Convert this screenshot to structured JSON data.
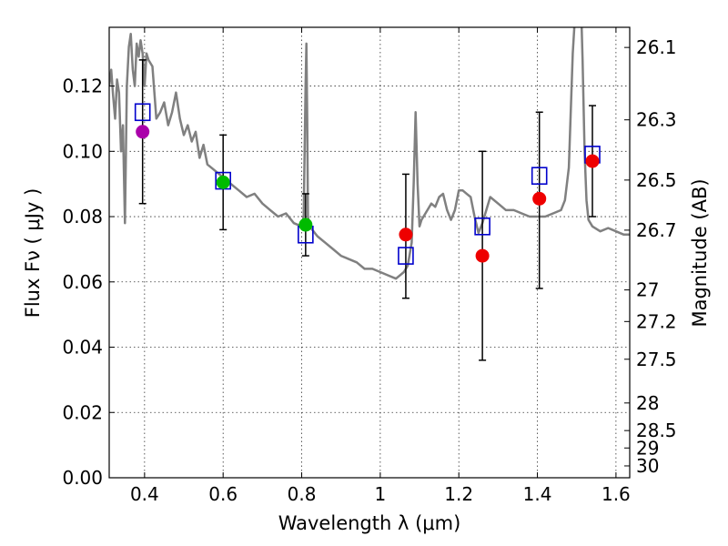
{
  "chart_data": {
    "type": "scatter",
    "xlabel": "Wavelength  λ (μm)",
    "ylabel": "Flux  Fν  ( μJy )",
    "ylabel_right": "Magnitude (AB)",
    "xlim": [
      0.31,
      1.635
    ],
    "ylim": [
      0.0,
      0.138
    ],
    "grid": true,
    "x_ticks": [
      {
        "value": 0.4,
        "label": "0.4"
      },
      {
        "value": 0.6,
        "label": "0.6"
      },
      {
        "value": 0.8,
        "label": "0.8"
      },
      {
        "value": 1.0,
        "label": "1"
      },
      {
        "value": 1.2,
        "label": "1.2"
      },
      {
        "value": 1.4,
        "label": "1.4"
      },
      {
        "value": 1.6,
        "label": "1.6"
      }
    ],
    "y_ticks": [
      {
        "value": 0.0,
        "label": "0.00"
      },
      {
        "value": 0.02,
        "label": "0.02"
      },
      {
        "value": 0.04,
        "label": "0.04"
      },
      {
        "value": 0.06,
        "label": "0.06"
      },
      {
        "value": 0.08,
        "label": "0.08"
      },
      {
        "value": 0.1,
        "label": "0.10"
      },
      {
        "value": 0.12,
        "label": "0.12"
      }
    ],
    "right_ticks": [
      {
        "mag": 26.1,
        "label": "26.1"
      },
      {
        "mag": 26.3,
        "label": "26.3"
      },
      {
        "mag": 26.5,
        "label": "26.5"
      },
      {
        "mag": 26.7,
        "label": "26.7"
      },
      {
        "mag": 27.0,
        "label": "27"
      },
      {
        "mag": 27.2,
        "label": "27.2"
      },
      {
        "mag": 27.5,
        "label": "27.5"
      },
      {
        "mag": 28.0,
        "label": "28"
      },
      {
        "mag": 28.5,
        "label": "28.5"
      },
      {
        "mag": 29.0,
        "label": "29"
      },
      {
        "mag": 30.0,
        "label": "30"
      }
    ],
    "colors": {
      "sed": "#808080",
      "model": "#0000cc",
      "errorbar": "#000000",
      "violet": "#aa00aa",
      "green": "#00bb00",
      "red": "#ee0000"
    },
    "model_sed": {
      "x": [
        0.31,
        0.315,
        0.32,
        0.325,
        0.33,
        0.335,
        0.34,
        0.345,
        0.35,
        0.355,
        0.36,
        0.365,
        0.37,
        0.375,
        0.38,
        0.385,
        0.39,
        0.395,
        0.4,
        0.405,
        0.41,
        0.42,
        0.43,
        0.44,
        0.45,
        0.46,
        0.47,
        0.48,
        0.49,
        0.5,
        0.51,
        0.52,
        0.53,
        0.54,
        0.55,
        0.56,
        0.58,
        0.6,
        0.62,
        0.64,
        0.66,
        0.68,
        0.7,
        0.72,
        0.74,
        0.76,
        0.78,
        0.8,
        0.805,
        0.81,
        0.812,
        0.814,
        0.816,
        0.82,
        0.84,
        0.86,
        0.88,
        0.9,
        0.92,
        0.94,
        0.96,
        0.98,
        1.0,
        1.02,
        1.04,
        1.06,
        1.07,
        1.08,
        1.085,
        1.09,
        1.095,
        1.1,
        1.105,
        1.11,
        1.12,
        1.13,
        1.14,
        1.15,
        1.16,
        1.17,
        1.18,
        1.19,
        1.2,
        1.21,
        1.22,
        1.23,
        1.24,
        1.25,
        1.26,
        1.27,
        1.28,
        1.3,
        1.32,
        1.34,
        1.36,
        1.38,
        1.4,
        1.42,
        1.44,
        1.46,
        1.47,
        1.48,
        1.49,
        1.5,
        1.505,
        1.51,
        1.515,
        1.52,
        1.525,
        1.53,
        1.54,
        1.56,
        1.58,
        1.6,
        1.62,
        1.635
      ],
      "y": [
        0.12,
        0.125,
        0.117,
        0.11,
        0.122,
        0.118,
        0.1,
        0.108,
        0.078,
        0.12,
        0.132,
        0.136,
        0.125,
        0.12,
        0.133,
        0.129,
        0.134,
        0.13,
        0.12,
        0.13,
        0.128,
        0.126,
        0.11,
        0.112,
        0.115,
        0.108,
        0.112,
        0.118,
        0.11,
        0.105,
        0.108,
        0.103,
        0.106,
        0.098,
        0.102,
        0.096,
        0.094,
        0.092,
        0.09,
        0.088,
        0.086,
        0.087,
        0.084,
        0.082,
        0.08,
        0.081,
        0.078,
        0.077,
        0.08,
        0.12,
        0.133,
        0.11,
        0.08,
        0.077,
        0.074,
        0.072,
        0.07,
        0.068,
        0.067,
        0.066,
        0.064,
        0.064,
        0.063,
        0.062,
        0.061,
        0.063,
        0.065,
        0.072,
        0.09,
        0.112,
        0.09,
        0.077,
        0.079,
        0.08,
        0.082,
        0.084,
        0.083,
        0.086,
        0.087,
        0.082,
        0.079,
        0.082,
        0.088,
        0.088,
        0.087,
        0.086,
        0.08,
        0.075,
        0.078,
        0.082,
        0.086,
        0.084,
        0.082,
        0.082,
        0.081,
        0.08,
        0.08,
        0.08,
        0.081,
        0.082,
        0.085,
        0.095,
        0.13,
        0.15,
        0.16,
        0.15,
        0.128,
        0.1,
        0.085,
        0.079,
        0.077,
        0.0755,
        0.0765,
        0.0755,
        0.0745,
        0.0745
      ]
    },
    "errorbars": [
      {
        "x": 0.395,
        "low": 0.084,
        "high": 0.128
      },
      {
        "x": 0.6,
        "low": 0.076,
        "high": 0.105
      },
      {
        "x": 0.81,
        "low": 0.068,
        "high": 0.087
      },
      {
        "x": 1.065,
        "low": 0.055,
        "high": 0.093
      },
      {
        "x": 1.26,
        "low": 0.036,
        "high": 0.1
      },
      {
        "x": 1.405,
        "low": 0.058,
        "high": 0.112
      },
      {
        "x": 1.54,
        "low": 0.08,
        "high": 0.114
      }
    ],
    "model_points": [
      {
        "x": 0.395,
        "y": 0.112
      },
      {
        "x": 0.6,
        "y": 0.091
      },
      {
        "x": 0.81,
        "y": 0.0745
      },
      {
        "x": 1.065,
        "y": 0.068
      },
      {
        "x": 1.26,
        "y": 0.077
      },
      {
        "x": 1.405,
        "y": 0.0925
      },
      {
        "x": 1.54,
        "y": 0.099
      }
    ],
    "observed_points": [
      {
        "x": 0.395,
        "y": 0.106,
        "color": "violet"
      },
      {
        "x": 0.6,
        "y": 0.0905,
        "color": "green"
      },
      {
        "x": 0.81,
        "y": 0.0775,
        "color": "green"
      },
      {
        "x": 1.065,
        "y": 0.0745,
        "color": "red"
      },
      {
        "x": 1.26,
        "y": 0.068,
        "color": "red"
      },
      {
        "x": 1.405,
        "y": 0.0855,
        "color": "red"
      },
      {
        "x": 1.54,
        "y": 0.097,
        "color": "red"
      }
    ]
  }
}
